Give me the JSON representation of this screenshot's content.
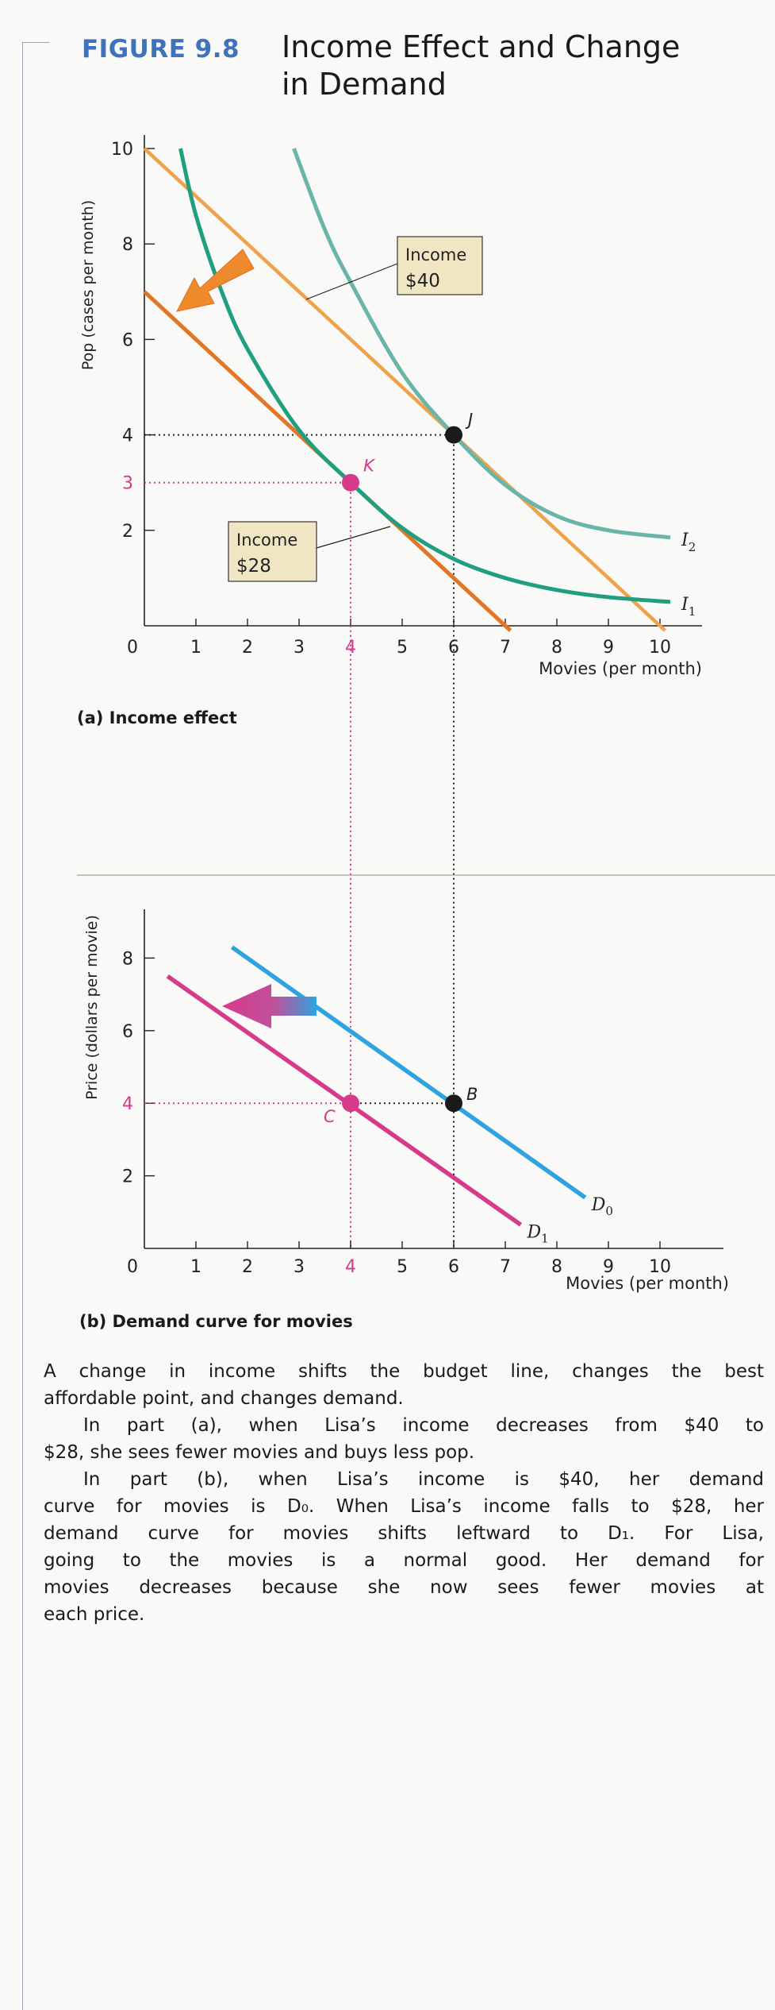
{
  "figure": {
    "number": "FIGURE 9.8",
    "title_line1": "Income Effect and Change",
    "title_line2": "in Demand"
  },
  "colors": {
    "accent_blue": "#3f72b8",
    "budget_40": "#f0a24a",
    "budget_28": "#e27626",
    "indiff_1": "#1f9f80",
    "indiff_2": "#6bb5a8",
    "demand_0": "#2ea3df",
    "demand_1": "#d63a8a",
    "highlight": "#d63a8a",
    "label_box": "#f1e6c4"
  },
  "chart_data": [
    {
      "type": "line",
      "id": "a",
      "caption": "(a) Income effect",
      "xlabel": "Movies (per month)",
      "ylabel": "Pop (cases per month)",
      "xlim": [
        0,
        10
      ],
      "ylim": [
        0,
        10
      ],
      "xticks": [
        "0",
        "1",
        "2",
        "3",
        "4",
        "5",
        "6",
        "7",
        "8",
        "9",
        "10"
      ],
      "yticks": [
        "2",
        "4",
        "6",
        "8",
        "10"
      ],
      "highlight_ticks": {
        "x": "4",
        "y": "3"
      },
      "series": [
        {
          "name": "Budget line $40",
          "points": [
            [
              0,
              10
            ],
            [
              10.1,
              -0.1
            ]
          ]
        },
        {
          "name": "Budget line $28",
          "points": [
            [
              0,
              7
            ],
            [
              7.1,
              -0.1
            ]
          ]
        },
        {
          "name": "I1",
          "label": "I",
          "sub": "1",
          "points": [
            [
              0.7,
              10
            ],
            [
              1,
              8.6
            ],
            [
              1.5,
              7
            ],
            [
              2,
              5.8
            ],
            [
              3,
              4.1
            ],
            [
              4,
              3
            ],
            [
              5,
              2.05
            ],
            [
              6,
              1.4
            ],
            [
              7,
              1.0
            ],
            [
              8,
              0.75
            ],
            [
              9,
              0.6
            ],
            [
              10.2,
              0.5
            ]
          ]
        },
        {
          "name": "I2",
          "label": "I",
          "sub": "2",
          "points": [
            [
              2.9,
              10
            ],
            [
              3.5,
              8.3
            ],
            [
              4,
              7.2
            ],
            [
              5,
              5.3
            ],
            [
              6,
              4
            ],
            [
              7,
              2.95
            ],
            [
              8,
              2.3
            ],
            [
              9,
              2.0
            ],
            [
              10.2,
              1.85
            ]
          ]
        }
      ],
      "points": [
        {
          "label": "J",
          "x": 6,
          "y": 4
        },
        {
          "label": "K",
          "x": 4,
          "y": 3
        }
      ],
      "annotations": [
        {
          "line1": "Income",
          "line2": "$40"
        },
        {
          "line1": "Income",
          "line2": "$28"
        }
      ]
    },
    {
      "type": "line",
      "id": "b",
      "caption": "(b) Demand curve for movies",
      "xlabel": "Movies (per month)",
      "ylabel": "Price (dollars per movie)",
      "xlim": [
        0,
        10
      ],
      "ylim": [
        0,
        8
      ],
      "xticks": [
        "0",
        "1",
        "2",
        "3",
        "4",
        "5",
        "6",
        "7",
        "8",
        "9",
        "10"
      ],
      "yticks": [
        "2",
        "4",
        "6",
        "8"
      ],
      "highlight_ticks": {
        "x": "4",
        "y": "4"
      },
      "series": [
        {
          "name": "D0",
          "label": "D",
          "sub": "0",
          "points": [
            [
              1.7,
              8.3
            ],
            [
              8.55,
              1.4
            ]
          ]
        },
        {
          "name": "D1",
          "label": "D",
          "sub": "1",
          "points": [
            [
              0.45,
              7.5
            ],
            [
              7.3,
              0.65
            ]
          ]
        }
      ],
      "points": [
        {
          "label": "B",
          "x": 6,
          "y": 4
        },
        {
          "label": "C",
          "x": 4,
          "y": 4
        }
      ]
    }
  ],
  "body": {
    "lines": [
      "A change in income shifts the budget line, changes the best",
      "affordable point, and changes demand.",
      "In part (a), when Lisa’s income decreases from $40 to",
      "$28, she sees fewer movies and buys less pop.",
      "In part (b), when Lisa’s income is $40, her demand",
      "curve for movies is D₀. When Lisa’s income falls to $28, her",
      "demand curve for movies shifts leftward to D₁. For Lisa,",
      "going to the movies is a normal good. Her demand for",
      "movies decreases because she now sees fewer movies at",
      "each price."
    ]
  }
}
